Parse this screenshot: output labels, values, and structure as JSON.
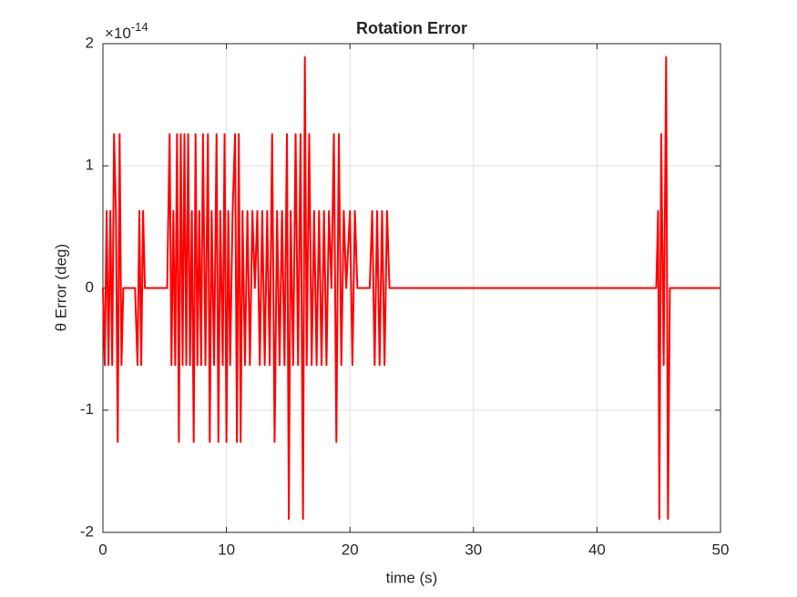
{
  "chart_data": {
    "type": "line",
    "title": "Rotation Error",
    "xlabel": "time (s)",
    "ylabel": "θ Error (deg)",
    "y_exponent_label": {
      "base": "×10",
      "exponent": "-14"
    },
    "xlim": [
      0,
      50
    ],
    "xticks": [
      0,
      10,
      20,
      30,
      40,
      50
    ],
    "ylim": [
      -2,
      2
    ],
    "yticks": [
      -2,
      -1,
      0,
      1,
      2
    ],
    "grid": true,
    "series": [
      {
        "color": "#ff0000",
        "x": [
          0,
          0.15,
          0.3,
          0.45,
          0.6,
          0.75,
          0.9,
          1.05,
          1.2,
          1.35,
          1.5,
          1.65,
          2.6,
          2.8,
          2.95,
          3.1,
          3.25,
          3.4,
          5.2,
          5.4,
          5.55,
          5.7,
          5.85,
          6.0,
          6.15,
          6.3,
          6.45,
          6.6,
          6.75,
          6.9,
          7.05,
          7.2,
          7.35,
          7.5,
          7.65,
          7.8,
          7.95,
          8.1,
          8.3,
          8.5,
          8.65,
          8.8,
          9.0,
          9.2,
          9.35,
          9.5,
          9.7,
          9.85,
          10.0,
          10.15,
          10.3,
          10.5,
          10.7,
          10.85,
          11.0,
          11.15,
          11.3,
          11.5,
          11.7,
          11.9,
          12.1,
          12.3,
          12.5,
          12.7,
          12.9,
          13.1,
          13.3,
          13.5,
          13.7,
          13.9,
          14.1,
          14.3,
          14.5,
          14.7,
          14.9,
          15.05,
          15.2,
          15.4,
          15.6,
          15.8,
          16.0,
          16.2,
          16.35,
          16.5,
          16.7,
          16.9,
          17.1,
          17.3,
          17.5,
          17.7,
          17.9,
          18.1,
          18.3,
          18.5,
          18.7,
          18.9,
          19.1,
          19.3,
          19.5,
          19.7,
          20.0,
          20.2,
          20.4,
          20.6,
          21.6,
          21.8,
          22.0,
          22.2,
          22.4,
          22.6,
          22.8,
          23.0,
          23.2,
          44.8,
          44.95,
          45.05,
          45.2,
          45.4,
          45.6,
          45.75,
          45.9,
          50
        ],
        "values": [
          0,
          -0.63,
          0.63,
          -0.63,
          0.63,
          -0.63,
          1.26,
          0.63,
          -1.26,
          1.26,
          -0.63,
          0,
          0,
          -0.63,
          0.63,
          -0.63,
          0.63,
          0,
          0,
          1.26,
          -0.63,
          0.63,
          -0.63,
          1.26,
          -1.26,
          1.26,
          -0.63,
          1.26,
          -0.63,
          1.26,
          -0.63,
          0.63,
          -1.26,
          1.26,
          -0.63,
          0.63,
          -0.63,
          1.26,
          -0.63,
          1.26,
          -1.26,
          0.63,
          -0.63,
          1.26,
          -1.26,
          0.63,
          -0.63,
          1.26,
          -1.26,
          0.63,
          -0.63,
          0.63,
          1.26,
          -1.26,
          1.26,
          -1.26,
          0.63,
          -0.63,
          0.63,
          -0.63,
          0.63,
          0,
          0.63,
          -0.63,
          0.63,
          -0.63,
          0.63,
          -0.63,
          1.26,
          -1.26,
          0.63,
          -0.63,
          0.63,
          -0.63,
          1.26,
          -1.89,
          0.63,
          -0.63,
          1.26,
          -0.63,
          1.26,
          -1.89,
          1.89,
          -0.63,
          1.26,
          -0.63,
          0.63,
          -0.63,
          0.63,
          -0.63,
          0.63,
          -0.63,
          0.63,
          0,
          1.26,
          -1.26,
          1.26,
          -0.63,
          0.63,
          0,
          0.63,
          -0.63,
          0.63,
          0,
          0,
          0.63,
          -0.63,
          0.63,
          -0.63,
          0.63,
          -0.63,
          0.63,
          0,
          0,
          0.63,
          -1.89,
          1.26,
          -0.63,
          1.89,
          -1.89,
          0,
          0
        ]
      }
    ]
  }
}
